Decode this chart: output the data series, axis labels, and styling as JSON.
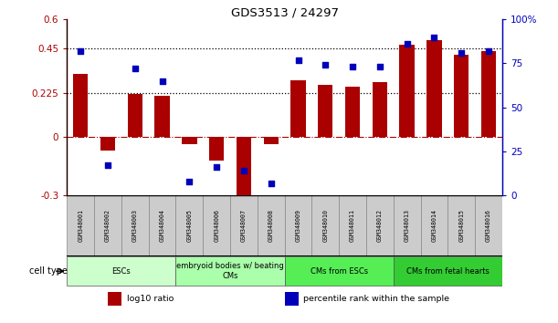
{
  "title": "GDS3513 / 24297",
  "samples": [
    "GSM348001",
    "GSM348002",
    "GSM348003",
    "GSM348004",
    "GSM348005",
    "GSM348006",
    "GSM348007",
    "GSM348008",
    "GSM348009",
    "GSM348010",
    "GSM348011",
    "GSM348012",
    "GSM348013",
    "GSM348014",
    "GSM348015",
    "GSM348016"
  ],
  "log10_ratio": [
    0.32,
    -0.07,
    0.22,
    0.21,
    -0.04,
    -0.12,
    -0.31,
    -0.04,
    0.29,
    0.265,
    0.255,
    0.28,
    0.47,
    0.495,
    0.42,
    0.44
  ],
  "percentile_rank_pct": [
    82,
    17,
    72,
    65,
    8,
    16,
    14,
    7,
    77,
    74,
    73,
    73,
    86,
    90,
    81,
    82
  ],
  "ylim_left": [
    -0.3,
    0.6
  ],
  "ylim_right": [
    0,
    100
  ],
  "yticks_left": [
    -0.3,
    0,
    0.225,
    0.45,
    0.6
  ],
  "yticks_left_labels": [
    "-0.3",
    "0",
    "0.225",
    "0.45",
    "0.6"
  ],
  "yticks_right": [
    0,
    25,
    50,
    75,
    100
  ],
  "yticks_right_labels": [
    "0",
    "25",
    "50",
    "75",
    "100%"
  ],
  "hlines": [
    0.225,
    0.45
  ],
  "bar_color": "#aa0000",
  "dot_color": "#0000bb",
  "zero_line_color": "#aa0000",
  "cell_type_groups": [
    {
      "label": "ESCs",
      "start": 0,
      "end": 3,
      "color": "#ccffcc"
    },
    {
      "label": "embryoid bodies w/ beating\nCMs",
      "start": 4,
      "end": 7,
      "color": "#aaffaa"
    },
    {
      "label": "CMs from ESCs",
      "start": 8,
      "end": 11,
      "color": "#55ee55"
    },
    {
      "label": "CMs from fetal hearts",
      "start": 12,
      "end": 15,
      "color": "#33cc33"
    }
  ],
  "legend_items": [
    {
      "color": "#aa0000",
      "label": "log10 ratio"
    },
    {
      "color": "#0000bb",
      "label": "percentile rank within the sample"
    }
  ],
  "cell_type_label": "cell type",
  "sample_box_color": "#cccccc",
  "sample_box_edge": "#888888"
}
